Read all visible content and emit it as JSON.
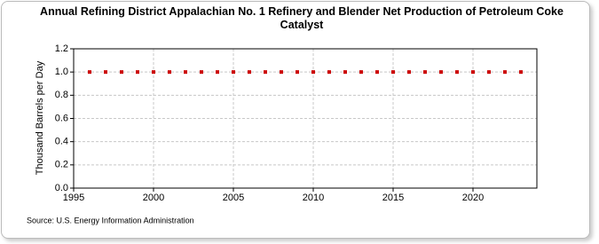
{
  "chart_data": {
    "type": "scatter",
    "title": "Annual Refining District Appalachian No. 1 Refinery and Blender Net Production of Petroleum Coke Catalyst",
    "y_label": "Thousand Barrels per Day",
    "source": "Source: U.S. Energy Information Administration",
    "x": [
      1996,
      1997,
      1998,
      1999,
      2000,
      2001,
      2002,
      2003,
      2004,
      2005,
      2006,
      2007,
      2008,
      2009,
      2010,
      2011,
      2012,
      2013,
      2014,
      2015,
      2016,
      2017,
      2018,
      2019,
      2020,
      2021,
      2022,
      2023
    ],
    "series": [
      {
        "color": "#cc0000",
        "values": [
          1,
          1,
          1,
          1,
          1,
          1,
          1,
          1,
          1,
          1,
          1,
          1,
          1,
          1,
          1,
          1,
          1,
          1,
          1,
          1,
          1,
          1,
          1,
          1,
          1,
          1,
          1,
          1
        ]
      }
    ],
    "xlim": [
      1995,
      2024
    ],
    "xticks": [
      1995,
      2000,
      2005,
      2010,
      2015,
      2020
    ],
    "ylim": [
      0,
      1.2
    ],
    "yticks": [
      {
        "value": 0,
        "label": "0.0"
      },
      0.2,
      0.4,
      0.6,
      0.8,
      {
        "value": 1,
        "label": "1.0"
      },
      1.2
    ],
    "grid": true
  }
}
